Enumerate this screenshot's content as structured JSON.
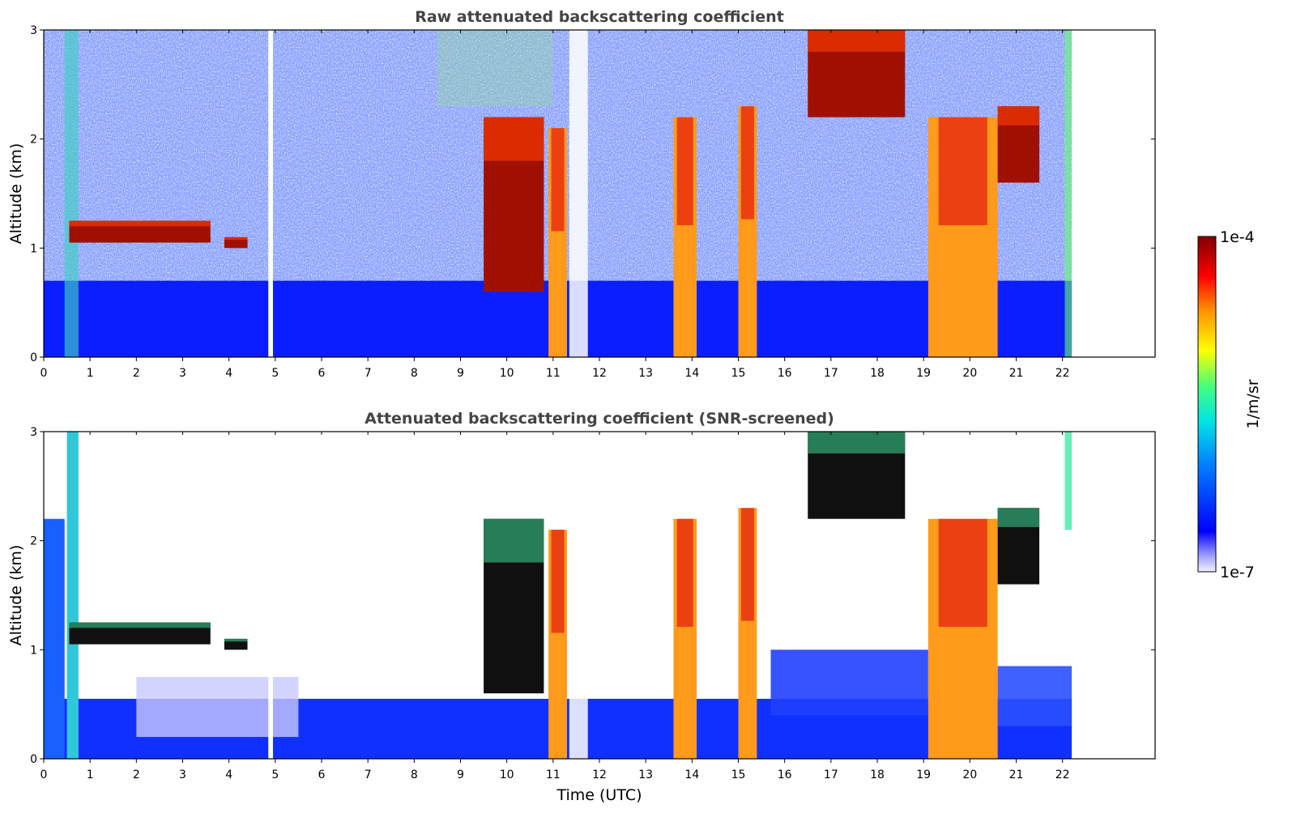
{
  "chart_data": [
    {
      "type": "heatmap",
      "title": "Raw attenuated backscattering coefficient",
      "xlabel": "",
      "ylabel": "Altitude (km)",
      "xlim": [
        0,
        24
      ],
      "ylim": [
        0,
        3
      ],
      "x_ticks": [
        0,
        1,
        2,
        3,
        4,
        5,
        6,
        7,
        8,
        9,
        10,
        11,
        12,
        13,
        14,
        15,
        16,
        17,
        18,
        19,
        20,
        21,
        22
      ],
      "y_ticks": [
        0,
        1,
        2,
        3
      ],
      "data_extent_x": [
        0,
        22.2
      ],
      "features": [
        {
          "name": "cloud",
          "t_start": 0.55,
          "t_end": 3.6,
          "alt_bottom": 1.05,
          "alt_top": 1.25
        },
        {
          "name": "cloud",
          "t_start": 3.9,
          "t_end": 4.4,
          "alt_bottom": 1.0,
          "alt_top": 1.1
        },
        {
          "name": "cloud",
          "t_start": 9.5,
          "t_end": 10.8,
          "alt_bottom": 0.6,
          "alt_top": 2.2
        },
        {
          "name": "precipitation",
          "t_start": 10.9,
          "t_end": 11.3,
          "alt_bottom": 0.0,
          "alt_top": 2.1
        },
        {
          "name": "precipitation",
          "t_start": 13.6,
          "t_end": 14.1,
          "alt_bottom": 0.0,
          "alt_top": 2.2
        },
        {
          "name": "precipitation",
          "t_start": 15.0,
          "t_end": 15.4,
          "alt_bottom": 0.0,
          "alt_top": 2.3
        },
        {
          "name": "cloud",
          "t_start": 16.5,
          "t_end": 18.6,
          "alt_bottom": 2.2,
          "alt_top": 3.0
        },
        {
          "name": "precipitation",
          "t_start": 19.1,
          "t_end": 20.6,
          "alt_bottom": 0.0,
          "alt_top": 2.2
        },
        {
          "name": "cloud",
          "t_start": 20.6,
          "t_end": 21.5,
          "alt_bottom": 1.6,
          "alt_top": 2.3
        }
      ]
    },
    {
      "type": "heatmap",
      "title": "Attenuated backscattering coefficient (SNR-screened)",
      "xlabel": "Time (UTC)",
      "ylabel": "Altitude (km)",
      "xlim": [
        0,
        24
      ],
      "ylim": [
        0,
        3
      ],
      "x_ticks": [
        0,
        1,
        2,
        3,
        4,
        5,
        6,
        7,
        8,
        9,
        10,
        11,
        12,
        13,
        14,
        15,
        16,
        17,
        18,
        19,
        20,
        21,
        22
      ],
      "y_ticks": [
        0,
        1,
        2,
        3
      ],
      "data_extent_x": [
        0,
        22.2
      ]
    }
  ],
  "colorbar": {
    "label": "1/m/sr",
    "min_label": "1e-7",
    "max_label": "1e-4",
    "min": 1e-07,
    "max": 0.0001,
    "scale": "log",
    "colors": [
      "#f2f2ff",
      "#0000ff",
      "#0080ff",
      "#00e5e5",
      "#40ff80",
      "#ffff00",
      "#ff9000",
      "#ff0000",
      "#800000"
    ]
  }
}
